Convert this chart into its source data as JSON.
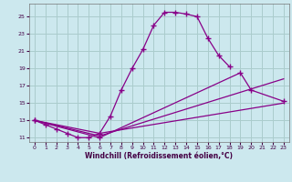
{
  "xlabel": "Windchill (Refroidissement éolien,°C)",
  "bg_color": "#cce8ee",
  "grid_color": "#aacccc",
  "line_color": "#880088",
  "ylim": [
    10.5,
    26.5
  ],
  "xlim": [
    -0.5,
    23.5
  ],
  "yticks": [
    11,
    13,
    15,
    17,
    19,
    21,
    23,
    25
  ],
  "xticks": [
    0,
    1,
    2,
    3,
    4,
    5,
    6,
    7,
    8,
    9,
    10,
    11,
    12,
    13,
    14,
    15,
    16,
    17,
    18,
    19,
    20,
    21,
    22,
    23
  ],
  "curve1_x": [
    0,
    1,
    2,
    3,
    4,
    5,
    6,
    7,
    8,
    9,
    10,
    11,
    12,
    13,
    14,
    15,
    16,
    17,
    18
  ],
  "curve1_y": [
    13.0,
    12.5,
    12.0,
    11.5,
    11.0,
    11.0,
    11.5,
    13.5,
    16.5,
    19.0,
    21.2,
    24.0,
    25.5,
    25.5,
    25.3,
    25.0,
    22.5,
    20.5,
    19.2
  ],
  "curve2_x": [
    0,
    6,
    19,
    20,
    23
  ],
  "curve2_y": [
    13.0,
    11.0,
    18.5,
    16.5,
    15.2
  ],
  "curve3_x": [
    0,
    6,
    23
  ],
  "curve3_y": [
    13.0,
    11.2,
    17.8
  ],
  "curve4_x": [
    0,
    6,
    23
  ],
  "curve4_y": [
    13.0,
    11.5,
    15.0
  ]
}
